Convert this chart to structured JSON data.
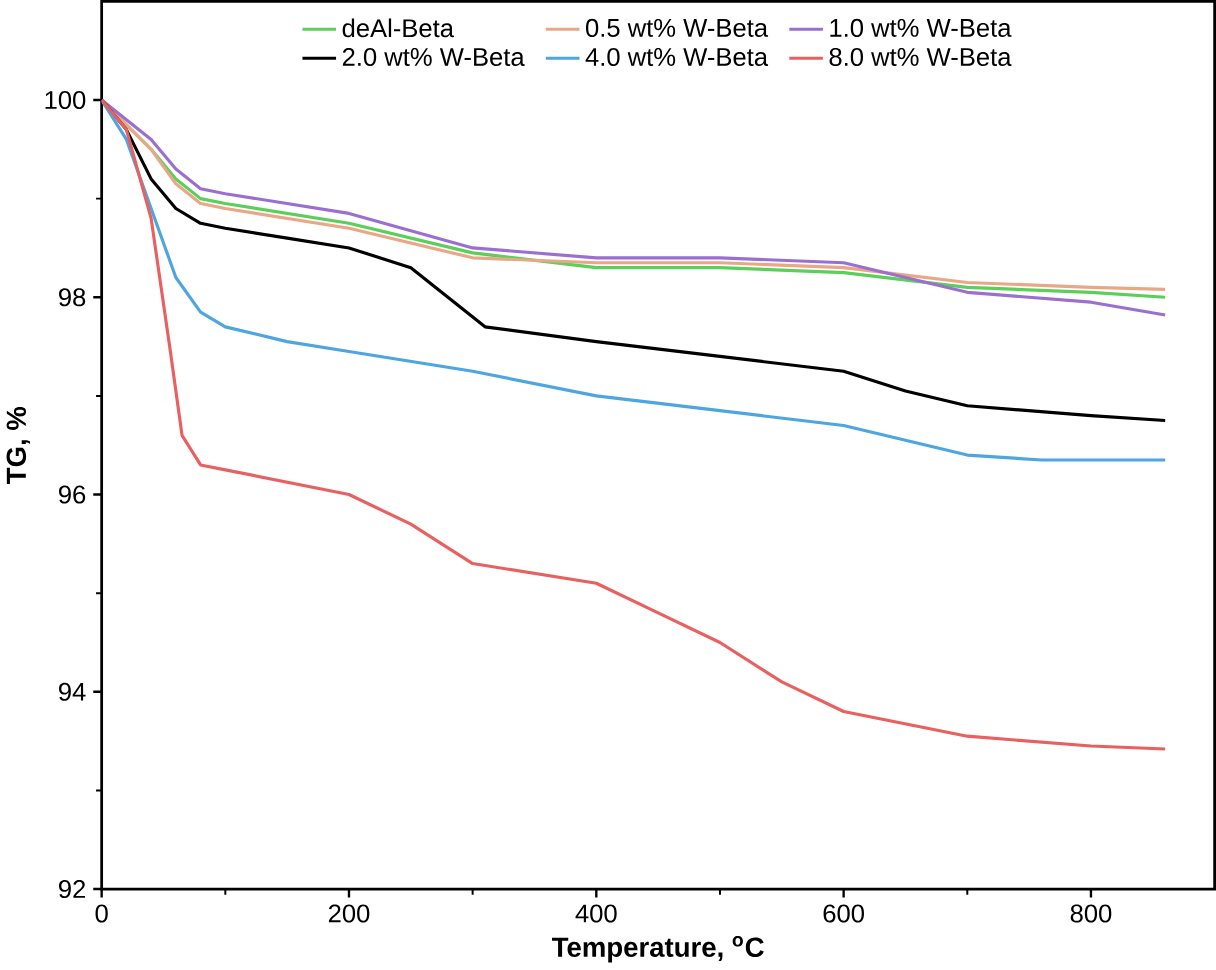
{
  "chart_data": {
    "type": "line",
    "xlabel": "Temperature, $^{o}$C",
    "ylabel": "TG, %",
    "xlim": [
      0,
      900
    ],
    "ylim": [
      92,
      101
    ],
    "xticks": [
      0,
      200,
      400,
      600,
      800
    ],
    "yticks": [
      92,
      94,
      96,
      98,
      100
    ],
    "legend": "top",
    "grid": false,
    "series": [
      {
        "name": "deAl-Beta",
        "color": "#5ccf5a",
        "x": [
          0,
          40,
          60,
          80,
          100,
          200,
          300,
          400,
          500,
          600,
          700,
          800,
          860
        ],
        "values": [
          100,
          99.5,
          99.2,
          99.0,
          98.95,
          98.75,
          98.45,
          98.3,
          98.3,
          98.25,
          98.1,
          98.05,
          98.0
        ]
      },
      {
        "name": "0.5 wt% W-Beta",
        "color": "#e8a888",
        "x": [
          0,
          40,
          60,
          80,
          100,
          200,
          300,
          400,
          500,
          600,
          700,
          800,
          860
        ],
        "values": [
          100,
          99.5,
          99.15,
          98.95,
          98.9,
          98.7,
          98.4,
          98.35,
          98.35,
          98.3,
          98.15,
          98.1,
          98.08
        ]
      },
      {
        "name": "1.0 wt% W-Beta",
        "color": "#9b6fd0",
        "x": [
          0,
          40,
          60,
          80,
          100,
          200,
          300,
          400,
          500,
          600,
          700,
          800,
          860
        ],
        "values": [
          100,
          99.6,
          99.3,
          99.1,
          99.05,
          98.85,
          98.5,
          98.4,
          98.4,
          98.35,
          98.05,
          97.95,
          97.82
        ]
      },
      {
        "name": "2.0 wt% W-Beta",
        "color": "#000000",
        "x": [
          0,
          20,
          40,
          60,
          80,
          100,
          150,
          200,
          250,
          280,
          310,
          400,
          500,
          600,
          650,
          700,
          800,
          860
        ],
        "values": [
          100,
          99.7,
          99.2,
          98.9,
          98.75,
          98.7,
          98.6,
          98.5,
          98.3,
          98.0,
          97.7,
          97.55,
          97.4,
          97.25,
          97.05,
          96.9,
          96.8,
          96.75
        ]
      },
      {
        "name": "4.0 wt% W-Beta",
        "color": "#4ea6e0",
        "x": [
          0,
          20,
          40,
          60,
          80,
          100,
          150,
          200,
          300,
          400,
          500,
          600,
          700,
          760,
          860
        ],
        "values": [
          100,
          99.6,
          98.9,
          98.2,
          97.85,
          97.7,
          97.55,
          97.45,
          97.25,
          97.0,
          96.85,
          96.7,
          96.4,
          96.35,
          96.35
        ]
      },
      {
        "name": "8.0 wt% W-Beta",
        "color": "#e86060",
        "x": [
          0,
          20,
          40,
          55,
          65,
          80,
          100,
          200,
          250,
          300,
          400,
          450,
          500,
          550,
          600,
          700,
          800,
          860
        ],
        "values": [
          100,
          99.7,
          98.8,
          97.5,
          96.6,
          96.3,
          96.25,
          96.0,
          95.7,
          95.3,
          95.1,
          94.8,
          94.5,
          94.1,
          93.8,
          93.55,
          93.45,
          93.42
        ]
      }
    ]
  }
}
